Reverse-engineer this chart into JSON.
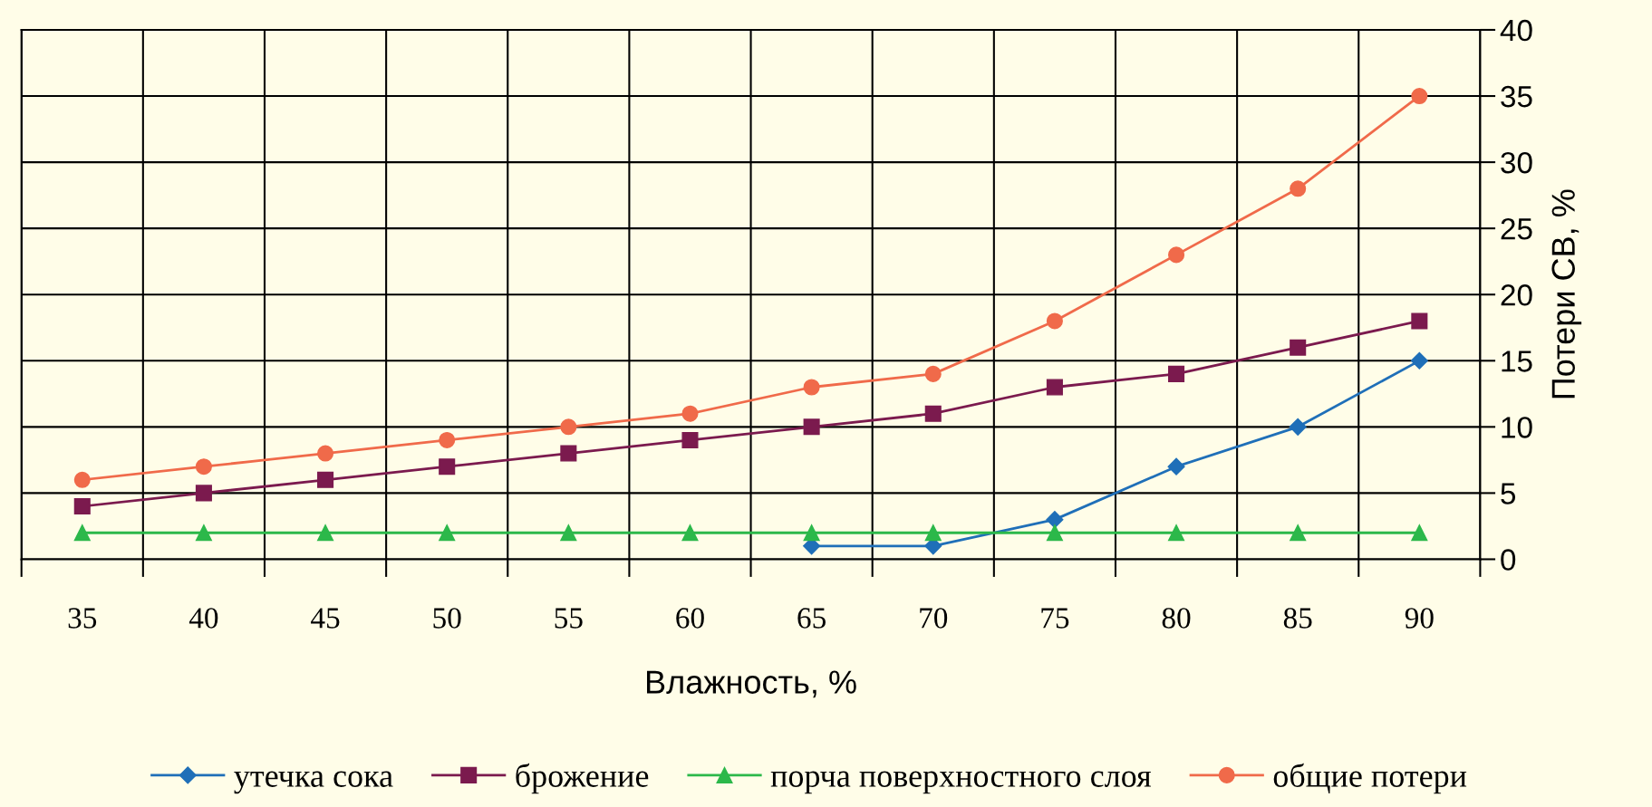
{
  "chart_data": {
    "type": "line",
    "xlabel": "Влажность, %",
    "ylabel": "Потери СВ, %",
    "categories": [
      "35",
      "40",
      "45",
      "50",
      "55",
      "60",
      "65",
      "70",
      "75",
      "80",
      "85",
      "90"
    ],
    "series": [
      {
        "name": "утечка сока",
        "color": "#1f6fb8",
        "marker": "diamond",
        "values": [
          null,
          null,
          null,
          null,
          null,
          null,
          1,
          1,
          3,
          7,
          10,
          15
        ]
      },
      {
        "name": "брожение",
        "color": "#7b1a4e",
        "marker": "square",
        "values": [
          4,
          5,
          6,
          7,
          8,
          9,
          10,
          11,
          13,
          14,
          16,
          18
        ]
      },
      {
        "name": "порча поверхностного слоя",
        "color": "#2cb84a",
        "marker": "triangle",
        "values": [
          2,
          2,
          2,
          2,
          2,
          2,
          2,
          2,
          2,
          2,
          2,
          2
        ]
      },
      {
        "name": "общие потери",
        "color": "#f06a4a",
        "marker": "circle",
        "values": [
          6,
          7,
          8,
          9,
          10,
          11,
          13,
          14,
          18,
          23,
          28,
          35
        ]
      }
    ],
    "ylim": [
      0,
      40
    ],
    "yticks": [
      0,
      5,
      10,
      15,
      20,
      25,
      30,
      35,
      40
    ],
    "grid": true,
    "legend": "bottom"
  }
}
